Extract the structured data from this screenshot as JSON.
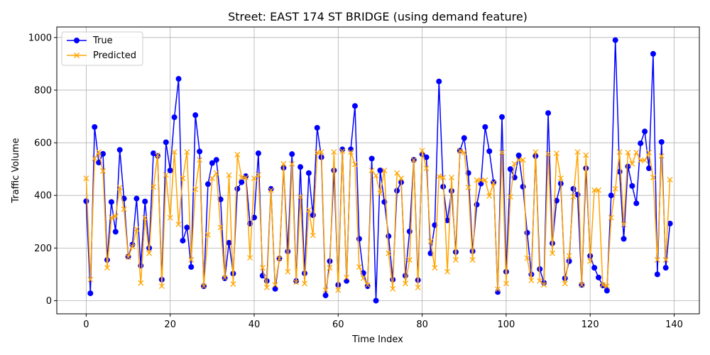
{
  "chart_data": {
    "type": "line",
    "title": "Street: EAST 174 ST BRIDGE (using demand feature)",
    "xlabel": "Time Index",
    "ylabel": "Traffic Volume",
    "xlim": [
      -7,
      146
    ],
    "ylim": [
      -50,
      1040
    ],
    "xticks": [
      0,
      20,
      40,
      60,
      80,
      100,
      120,
      140
    ],
    "yticks": [
      0,
      200,
      400,
      600,
      800,
      1000
    ],
    "grid": true,
    "legend": "top-left",
    "x": [
      0,
      1,
      2,
      3,
      4,
      5,
      6,
      7,
      8,
      9,
      10,
      11,
      12,
      13,
      14,
      15,
      16,
      17,
      18,
      19,
      20,
      21,
      22,
      23,
      24,
      25,
      26,
      27,
      28,
      29,
      30,
      31,
      32,
      33,
      34,
      35,
      36,
      37,
      38,
      39,
      40,
      41,
      42,
      43,
      44,
      45,
      46,
      47,
      48,
      49,
      50,
      51,
      52,
      53,
      54,
      55,
      56,
      57,
      58,
      59,
      60,
      61,
      62,
      63,
      64,
      65,
      66,
      67,
      68,
      69,
      70,
      71,
      72,
      73,
      74,
      75,
      76,
      77,
      78,
      79,
      80,
      81,
      82,
      83,
      84,
      85,
      86,
      87,
      88,
      89,
      90,
      91,
      92,
      93,
      94,
      95,
      96,
      97,
      98,
      99,
      100,
      101,
      102,
      103,
      104,
      105,
      106,
      107,
      108,
      109,
      110,
      111,
      112,
      113,
      114,
      115,
      116,
      117,
      118,
      119,
      120,
      121,
      122,
      123,
      124,
      125,
      126,
      127,
      128,
      129,
      130,
      131,
      132,
      133,
      134,
      135,
      136,
      137,
      138,
      139
    ],
    "series": [
      {
        "name": "True",
        "color": "#0000ff",
        "marker": "circle",
        "values": [
          378,
          28,
          660,
          525,
          558,
          155,
          375,
          262,
          573,
          388,
          168,
          213,
          388,
          133,
          377,
          200,
          560,
          550,
          80,
          602,
          495,
          697,
          843,
          228,
          278,
          128,
          705,
          567,
          55,
          443,
          523,
          535,
          385,
          85,
          220,
          103,
          425,
          450,
          473,
          293,
          316,
          560,
          95,
          75,
          425,
          45,
          160,
          505,
          187,
          557,
          75,
          508,
          104,
          485,
          325,
          657,
          545,
          20,
          150,
          495,
          60,
          575,
          75,
          575,
          740,
          235,
          105,
          55,
          540,
          0,
          495,
          375,
          245,
          80,
          418,
          450,
          95,
          263,
          535,
          78,
          557,
          545,
          180,
          287,
          833,
          433,
          305,
          417,
          185,
          570,
          618,
          485,
          188,
          365,
          445,
          660,
          568,
          450,
          33,
          698,
          110,
          500,
          468,
          552,
          433,
          258,
          100,
          550,
          120,
          68,
          713,
          218,
          380,
          445,
          85,
          150,
          425,
          403,
          60,
          503,
          170,
          125,
          88,
          58,
          38,
          400,
          990,
          490,
          235,
          510,
          436,
          370,
          598,
          643,
          503,
          938,
          100,
          603,
          125,
          293
        ]
      },
      {
        "name": "Predicted",
        "color": "#ffa500",
        "marker": "x",
        "values": [
          465,
          80,
          540,
          565,
          493,
          125,
          315,
          320,
          430,
          348,
          165,
          205,
          273,
          67,
          315,
          180,
          432,
          553,
          55,
          478,
          315,
          565,
          290,
          465,
          565,
          155,
          423,
          535,
          55,
          250,
          465,
          485,
          278,
          87,
          477,
          63,
          555,
          468,
          468,
          163,
          465,
          478,
          125,
          50,
          420,
          60,
          160,
          520,
          110,
          520,
          70,
          395,
          65,
          345,
          248,
          563,
          565,
          40,
          125,
          565,
          40,
          568,
          88,
          565,
          518,
          128,
          85,
          60,
          495,
          475,
          408,
          495,
          180,
          45,
          485,
          465,
          65,
          155,
          535,
          50,
          570,
          503,
          225,
          125,
          473,
          468,
          110,
          468,
          155,
          570,
          563,
          430,
          155,
          458,
          458,
          458,
          398,
          448,
          43,
          563,
          65,
          395,
          520,
          535,
          535,
          162,
          77,
          565,
          75,
          60,
          558,
          180,
          560,
          465,
          65,
          170,
          395,
          565,
          60,
          553,
          150,
          420,
          420,
          60,
          55,
          315,
          425,
          565,
          290,
          563,
          520,
          563,
          533,
          533,
          563,
          468,
          155,
          550,
          155,
          460
        ]
      }
    ]
  }
}
